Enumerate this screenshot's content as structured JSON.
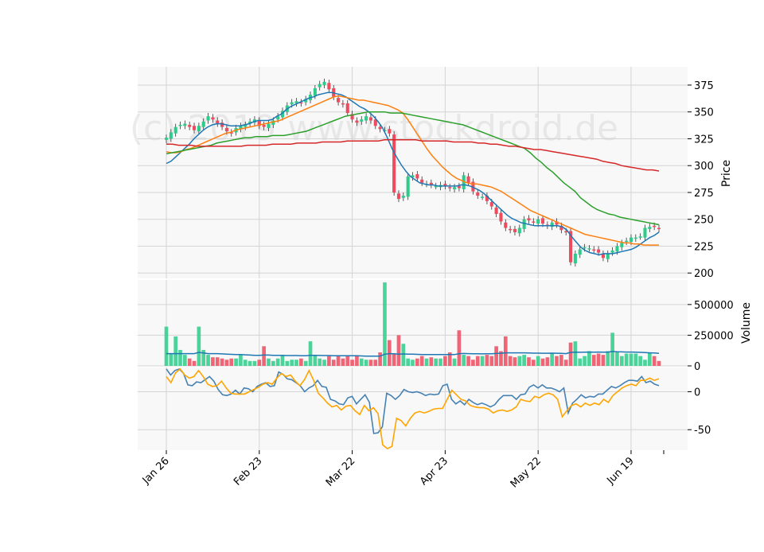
{
  "watermark": "(c) 2019 www.stockdroid.de",
  "colors": {
    "up": "#2ecc8a",
    "down": "#ef4b5f",
    "sma_fast": "#1f77b4",
    "sma_mid": "#ff7f0e",
    "sma_slow": "#2ca02c",
    "sma_long": "#d62728",
    "volume_avg": "#1f77b4",
    "osc_blue": "#4682b4",
    "osc_orange": "#ffa500",
    "panel_bg": "#f8f8f8",
    "grid": "#d4d4d4"
  },
  "chart_data": {
    "type": "candlestick",
    "x_ticks": [
      "Jan 26",
      "Feb 23",
      "Mar 22",
      "Apr 23",
      "May 22",
      "Jun 19",
      ""
    ],
    "price_panel": {
      "ylabel": "Price",
      "ylim": [
        195,
        392
      ],
      "yticks": [
        200,
        225,
        250,
        275,
        300,
        325,
        350,
        375
      ],
      "close": [
        326,
        331,
        336,
        338,
        339,
        336,
        333,
        337,
        341,
        346,
        343,
        339,
        336,
        332,
        330,
        335,
        337,
        338,
        341,
        343,
        337,
        336,
        339,
        342,
        346,
        351,
        356,
        359,
        360,
        358,
        362,
        366,
        372,
        376,
        378,
        371,
        364,
        359,
        357,
        349,
        343,
        340,
        343,
        346,
        342,
        337,
        334,
        333,
        330,
        275,
        269,
        272,
        290,
        291,
        288,
        284,
        283,
        282,
        281,
        282,
        281,
        279,
        280,
        279,
        291,
        284,
        276,
        272,
        271,
        267,
        262,
        255,
        248,
        242,
        240,
        238,
        242,
        250,
        249,
        247,
        250,
        246,
        244,
        247,
        245,
        240,
        238,
        210,
        218,
        222,
        224,
        223,
        221,
        219,
        214,
        218,
        221,
        225,
        228,
        230,
        233,
        233,
        234,
        242,
        243,
        243,
        241
      ],
      "series": [
        {
          "name": "",
          "role": "sma_fast",
          "values": [
            302,
            304,
            308,
            312,
            316,
            320,
            325,
            329,
            333,
            336,
            338,
            339,
            339,
            338,
            337,
            337,
            337,
            338,
            339,
            341,
            342,
            342,
            342,
            343,
            346,
            348,
            352,
            355,
            357,
            359,
            361,
            363,
            364,
            366,
            367,
            368,
            368,
            367,
            366,
            364,
            361,
            358,
            355,
            353,
            350,
            346,
            341,
            335,
            326,
            316,
            308,
            301,
            295,
            290,
            287,
            284,
            283,
            282,
            282,
            281,
            281,
            281,
            281,
            281,
            282,
            282,
            281,
            279,
            277,
            274,
            270,
            266,
            262,
            258,
            254,
            251,
            249,
            247,
            246,
            245,
            244,
            244,
            244,
            244,
            244,
            244,
            243,
            240,
            234,
            229,
            224,
            221,
            219,
            218,
            217,
            218,
            218,
            218,
            219,
            220,
            221,
            222,
            224,
            227,
            230,
            233,
            235,
            238
          ]
        },
        {
          "name": "",
          "role": "sma_mid",
          "values": [
            313,
            312,
            312,
            313,
            315,
            316,
            318,
            320,
            322,
            324,
            326,
            328,
            330,
            331,
            333,
            334,
            335,
            336,
            337,
            338,
            339,
            340,
            341,
            342,
            344,
            346,
            348,
            350,
            352,
            354,
            356,
            358,
            360,
            362,
            364,
            365,
            364,
            363,
            362,
            361,
            361,
            360,
            359,
            358,
            357,
            356,
            354,
            352,
            349,
            343,
            336,
            329,
            322,
            315,
            309,
            304,
            299,
            295,
            291,
            288,
            286,
            284,
            283,
            283,
            282,
            281,
            280,
            278,
            276,
            273,
            270,
            267,
            264,
            261,
            258,
            256,
            254,
            252,
            250,
            248,
            246,
            244,
            242,
            240,
            238,
            236,
            235,
            234,
            233,
            232,
            231,
            230,
            229,
            228,
            228,
            227,
            227,
            226,
            226,
            226,
            226
          ]
        },
        {
          "name": "",
          "role": "sma_slow",
          "values": [
            311,
            312,
            313,
            314,
            315,
            316,
            317,
            318,
            319,
            321,
            322,
            323,
            324,
            325,
            326,
            326,
            327,
            327,
            327,
            328,
            328,
            328,
            329,
            330,
            331,
            332,
            334,
            336,
            338,
            340,
            342,
            344,
            346,
            347,
            348,
            349,
            350,
            350,
            350,
            350,
            349,
            349,
            349,
            348,
            347,
            346,
            345,
            344,
            343,
            342,
            341,
            340,
            339,
            338,
            336,
            334,
            332,
            330,
            328,
            326,
            324,
            322,
            320,
            318,
            316,
            312,
            307,
            303,
            298,
            294,
            289,
            284,
            280,
            276,
            270,
            266,
            262,
            259,
            257,
            255,
            254,
            252,
            251,
            250,
            249,
            248,
            247,
            246,
            245
          ]
        },
        {
          "name": "",
          "role": "sma_long",
          "values": [
            320,
            320,
            319,
            319,
            319,
            318,
            318,
            318,
            318,
            318,
            318,
            318,
            318,
            319,
            319,
            319,
            319,
            320,
            320,
            320,
            320,
            321,
            321,
            321,
            321,
            322,
            322,
            322,
            322,
            323,
            323,
            323,
            323,
            323,
            323,
            324,
            324,
            324,
            324,
            324,
            324,
            323,
            323,
            323,
            323,
            323,
            322,
            322,
            322,
            322,
            321,
            321,
            320,
            320,
            319,
            318,
            318,
            317,
            316,
            315,
            315,
            314,
            313,
            312,
            311,
            310,
            309,
            308,
            307,
            306,
            304,
            303,
            302,
            300,
            299,
            298,
            297,
            296,
            296,
            295
          ]
        }
      ]
    },
    "volume_panel": {
      "ylabel": "Volume",
      "ylim": [
        0,
        700000
      ],
      "yticks": [
        0,
        250000,
        500000
      ],
      "values": [
        320000,
        100000,
        240000,
        130000,
        90000,
        60000,
        40000,
        320000,
        130000,
        90000,
        70000,
        70000,
        60000,
        50000,
        60000,
        60000,
        90000,
        50000,
        40000,
        40000,
        50000,
        160000,
        60000,
        40000,
        60000,
        90000,
        40000,
        50000,
        50000,
        60000,
        40000,
        200000,
        90000,
        60000,
        50000,
        80000,
        50000,
        80000,
        60000,
        80000,
        50000,
        80000,
        60000,
        50000,
        50000,
        50000,
        110000,
        680000,
        210000,
        100000,
        250000,
        180000,
        60000,
        50000,
        60000,
        80000,
        60000,
        70000,
        60000,
        60000,
        80000,
        110000,
        60000,
        290000,
        90000,
        80000,
        50000,
        80000,
        80000,
        90000,
        80000,
        160000,
        120000,
        240000,
        80000,
        70000,
        80000,
        90000,
        70000,
        50000,
        80000,
        60000,
        70000,
        100000,
        80000,
        90000,
        50000,
        190000,
        200000,
        60000,
        80000,
        120000,
        90000,
        100000,
        90000,
        120000,
        270000,
        110000,
        80000,
        100000,
        100000,
        100000,
        80000,
        50000,
        110000,
        80000,
        40000
      ],
      "series": [
        {
          "name": "",
          "role": "volume_avg",
          "values": [
            100000,
            100000,
            100000,
            100000,
            100000,
            100000,
            100000,
            110000,
            105000,
            100000,
            100000,
            100000,
            98000,
            96000,
            94000,
            93000,
            92000,
            90000,
            88000,
            86000,
            86000,
            88000,
            88000,
            86000,
            86000,
            85000,
            84000,
            84000,
            84000,
            83000,
            82000,
            86000,
            86000,
            85000,
            84000,
            84000,
            83000,
            83000,
            82000,
            82000,
            82000,
            82000,
            81000,
            80000,
            80000,
            80000,
            80000,
            95000,
            100000,
            99000,
            96000,
            97000,
            96000,
            95000,
            94000,
            93000,
            93000,
            93000,
            92000,
            92000,
            92000,
            93000,
            92000,
            100000,
            101000,
            100000,
            99000,
            99000,
            98000,
            99000,
            99000,
            101000,
            103000,
            106000,
            106000,
            106000,
            106000,
            106000,
            105000,
            104000,
            104000,
            103000,
            103000,
            104000,
            103000,
            102000,
            100000,
            110000,
            112000,
            111000,
            112000,
            113000,
            112000,
            113000,
            112000,
            112000,
            117000,
            115000,
            114000,
            113000,
            113000,
            112000,
            110000,
            108000,
            106000,
            105000,
            102000
          ]
        }
      ]
    },
    "oscillator_panel": {
      "ylabel": "",
      "ylim": [
        -77,
        32
      ],
      "yticks": [
        -50,
        0
      ],
      "series": [
        {
          "name": "",
          "role": "osc_blue",
          "values": [
            30,
            22,
            28,
            30,
            24,
            9,
            8,
            13,
            12,
            16,
            20,
            14,
            3,
            -4,
            -5,
            -3,
            2,
            -3,
            5,
            4,
            0,
            7,
            10,
            12,
            7,
            8,
            26,
            23,
            17,
            16,
            12,
            8,
            0,
            5,
            8,
            15,
            7,
            6,
            -10,
            -12,
            -16,
            -17,
            -8,
            -6,
            -16,
            -10,
            -4,
            -14,
            -55,
            -54,
            -46,
            -2,
            -5,
            -10,
            -5,
            3,
            0,
            -1,
            0,
            -2,
            -5,
            -3,
            -4,
            -3,
            8,
            10,
            -10,
            -16,
            -12,
            -17,
            -10,
            -14,
            -17,
            -15,
            -17,
            -20,
            -17,
            -10,
            -5,
            -5,
            -5,
            -10,
            -4,
            -3,
            6,
            9,
            5,
            9,
            5,
            5,
            3,
            0,
            5,
            -28,
            -15,
            -10,
            -4,
            -8,
            -6,
            -7,
            -3,
            -3,
            2,
            7,
            5,
            8,
            12,
            15,
            15,
            14,
            20,
            12,
            14,
            10,
            8
          ]
        },
        {
          "name": "",
          "role": "osc_orange",
          "values": [
            20,
            12,
            25,
            30,
            22,
            18,
            20,
            28,
            20,
            10,
            7,
            8,
            14,
            5,
            -2,
            -3,
            -3,
            -3,
            0,
            3,
            6,
            10,
            12,
            10,
            18,
            24,
            20,
            22,
            14,
            8,
            16,
            28,
            15,
            -2,
            -8,
            -15,
            -20,
            -18,
            -24,
            -19,
            -18,
            -25,
            -30,
            -18,
            -25,
            -21,
            -29,
            -70,
            -75,
            -72,
            -35,
            -38,
            -45,
            -35,
            -28,
            -26,
            -28,
            -26,
            -23,
            -22,
            -22,
            -10,
            2,
            -4,
            -10,
            -12,
            -18,
            -20,
            -21,
            -21,
            -23,
            -28,
            -25,
            -24,
            -26,
            -24,
            -20,
            -10,
            -12,
            -13,
            -6,
            -8,
            -4,
            -2,
            -4,
            -10,
            -33,
            -25,
            -18,
            -16,
            -20,
            -15,
            -18,
            -15,
            -17,
            -10,
            -14,
            -5,
            0,
            5,
            8,
            10,
            8,
            15,
            15,
            18,
            15,
            17
          ]
        }
      ]
    }
  }
}
